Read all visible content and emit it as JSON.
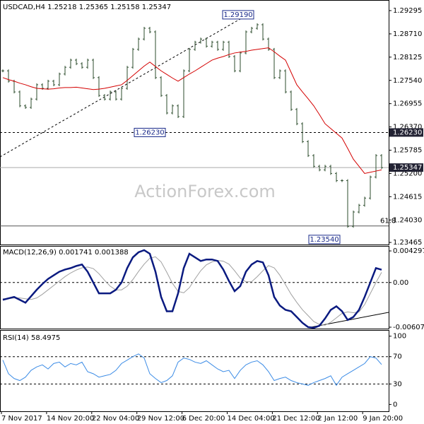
{
  "chart_data": [
    {
      "type": "ohlc",
      "symbol": "USDCAD,H4",
      "ohlc": [
        1.25218,
        1.25365,
        1.25158,
        1.25347
      ],
      "ylim": [
        1.23413,
        1.29526
      ],
      "yticks": [
        1.29295,
        {
          "value": 1.2871,
          "label": "1.28710"
        },
        1.28125,
        {
          "value": 1.2754,
          "label": "1.27540"
        },
        1.26955,
        {
          "value": 1.2637,
          "label": "1.26370"
        },
        1.25785,
        {
          "value": 1.252,
          "label": "1.25200"
        },
        1.24615,
        {
          "value": 1.2403,
          "label": "1.24030"
        },
        1.23465
      ],
      "bar_color": "#2e4d2e",
      "ma_color": "#d40000",
      "closes": [
        1.2778,
        1.2752,
        1.2725,
        1.269,
        1.2686,
        1.2707,
        1.2743,
        1.2734,
        1.2752,
        1.2743,
        1.277,
        1.2787,
        1.2805,
        1.2796,
        1.2787,
        1.2805,
        1.2761,
        1.2716,
        1.2707,
        1.2725,
        1.2707,
        1.2734,
        1.2787,
        1.2832,
        1.2858,
        1.2885,
        1.2876,
        1.2761,
        1.2716,
        1.2672,
        1.269,
        1.2663,
        1.2778,
        1.2832,
        1.285,
        1.2858,
        1.284,
        1.285,
        1.2832,
        1.285,
        1.2814,
        1.2778,
        1.2823,
        1.2876,
        1.2885,
        1.2894,
        1.2858,
        1.2832,
        1.2761,
        1.2778,
        1.2725,
        1.2681,
        1.2645,
        1.26,
        1.2565,
        1.2538,
        1.2529,
        1.2538,
        1.252,
        1.2502,
        1.2502,
        1.2387,
        1.2423,
        1.244,
        1.2458,
        1.2511,
        1.2565,
        1.25347
      ],
      "ma": [
        1.2761,
        1.2756,
        1.2752,
        1.2747,
        1.2743,
        1.2738,
        1.2734,
        1.2733,
        1.2732,
        1.2733,
        1.2735,
        1.2736,
        1.2736,
        1.2737,
        1.2735,
        1.2733,
        1.2731,
        1.2732,
        1.2734,
        1.2737,
        1.274,
        1.2743,
        1.2754,
        1.2766,
        1.2778,
        1.279,
        1.28,
        1.2789,
        1.2778,
        1.2769,
        1.276,
        1.2752,
        1.2761,
        1.277,
        1.2778,
        1.2787,
        1.2796,
        1.2805,
        1.281,
        1.2814,
        1.2819,
        1.2823,
        1.2825,
        1.2827,
        1.283,
        1.2832,
        1.2834,
        1.2836,
        1.2826,
        1.2815,
        1.2805,
        1.2774,
        1.2743,
        1.2725,
        1.2708,
        1.269,
        1.2668,
        1.2645,
        1.2633,
        1.2621,
        1.2609,
        1.2583,
        1.2556,
        1.2538,
        1.252,
        1.2523,
        1.2526,
        1.2529
      ],
      "levels": [
        {
          "value": 1.2623,
          "label": "1.26230"
        }
      ],
      "fib": {
        "value": 1.2388,
        "label": "61.8"
      },
      "annotations": [
        {
          "value": 1.2919,
          "label": "1.29190"
        },
        {
          "value": 1.2623,
          "label": "1.26230"
        },
        {
          "value": 1.2354,
          "label": "1.23540"
        }
      ],
      "watermark": "ActionForex.com"
    },
    {
      "type": "macd",
      "name": "MACD(12,26,9)",
      "ylim": [
        -0.00636,
        0.00488
      ],
      "yticks": [
        0.004297,
        {
          "value": 0,
          "label": "0.00"
        },
        -0.006071
      ],
      "macd_color": "#0a1a80",
      "signal_color": "#a0a0a0",
      "macd": [
        -0.00235,
        -0.00215,
        -0.00196,
        -0.00235,
        -0.00274,
        -0.00186,
        -0.00098,
        -0.0002,
        0.00049,
        0.00098,
        0.00147,
        0.00176,
        0.00196,
        0.00225,
        0.00245,
        0.00147,
        0,
        -0.00147,
        -0.00147,
        -0.00147,
        -0.00098,
        0,
        0.00196,
        0.00342,
        0.00411,
        0.0044,
        0.00391,
        0.00147,
        -0.00196,
        -0.00391,
        -0.00391,
        -0.00147,
        0.00196,
        0.00391,
        0.00342,
        0.00293,
        0.00313,
        0.00313,
        0.00293,
        0.00176,
        0.0002,
        -0.00117,
        -0.00049,
        0.00147,
        0.00245,
        0.00293,
        0.00274,
        0.00098,
        -0.00196,
        -0.00313,
        -0.00372,
        -0.00391,
        -0.00469,
        -0.00548,
        -0.00606,
        -0.00616,
        -0.00587,
        -0.00489,
        -0.00372,
        -0.00323,
        -0.00391,
        -0.00509,
        -0.00469,
        -0.00372,
        -0.00196,
        0,
        0.00196,
        0.001741
      ],
      "signal": [
        -0.0022,
        -0.0022,
        -0.0021,
        -0.0021,
        -0.0022,
        -0.0023,
        -0.0021,
        -0.0016,
        -0.001,
        -0.0004,
        0.0002,
        0.0008,
        0.0013,
        0.0017,
        0.002,
        0.0021,
        0.0019,
        0.0012,
        0.0003,
        -0.0005,
        -0.001,
        -0.001,
        -0.0005,
        0.0004,
        0.0015,
        0.0025,
        0.0033,
        0.0035,
        0.0028,
        0.0014,
        -0.0001,
        -0.0012,
        -0.0014,
        -0.0007,
        0.0005,
        0.0016,
        0.0024,
        0.0028,
        0.003,
        0.0029,
        0.0025,
        0.0016,
        0.0006,
        0.0001,
        0.0001,
        0.0008,
        0.0016,
        0.0023,
        0.002,
        0.001,
        -0.0003,
        -0.0016,
        -0.0027,
        -0.0037,
        -0.0045,
        -0.0053,
        -0.0057,
        -0.0058,
        -0.0054,
        -0.0048,
        -0.0042,
        -0.004,
        -0.0041,
        -0.004,
        -0.003,
        -0.0015,
        0,
        0.001388
      ]
    },
    {
      "type": "rsi",
      "name": "RSI(14)",
      "ylim": [
        -10,
        108
      ],
      "yticks": [
        100,
        70,
        30,
        0
      ],
      "levels": [
        70,
        30
      ],
      "color": "#3c8ce6",
      "values": [
        65,
        45,
        38,
        35,
        40,
        50,
        55,
        58,
        52,
        60,
        62,
        55,
        60,
        58,
        62,
        48,
        45,
        40,
        42,
        44,
        50,
        60,
        65,
        70,
        74,
        68,
        45,
        38,
        32,
        35,
        42,
        62,
        68,
        66,
        62,
        60,
        64,
        58,
        52,
        48,
        50,
        38,
        50,
        58,
        62,
        64,
        58,
        48,
        35,
        38,
        40,
        35,
        32,
        30,
        28,
        32,
        35,
        38,
        42,
        28,
        40,
        45,
        50,
        55,
        60,
        70,
        68,
        58.4975
      ],
      "x_labels": [
        "7 Nov 2017",
        "14 Nov 20:00",
        "22 Nov 04:00",
        "29 Nov 12:00",
        "6 Dec 20:00",
        "14 Dec 04:00",
        "21 Dec 12:00",
        "2 Jan 12:00",
        "9 Jan 20:00"
      ]
    }
  ]
}
